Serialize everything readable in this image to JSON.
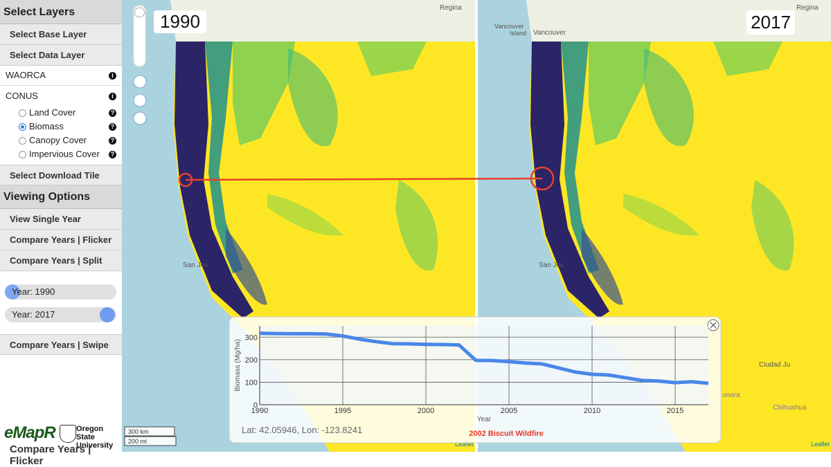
{
  "sidebar": {
    "layers_header": "Select Layers",
    "base_layer": "Select Base Layer",
    "data_layer": "Select Data Layer",
    "groups": [
      "WAORCA",
      "CONUS"
    ],
    "options": [
      {
        "label": "Land Cover",
        "checked": false
      },
      {
        "label": "Biomass",
        "checked": true
      },
      {
        "label": "Canopy Cover",
        "checked": false
      },
      {
        "label": "Impervious Cover",
        "checked": false
      }
    ],
    "download": "Select Download Tile",
    "viewing_header": "Viewing Options",
    "view_buttons": [
      "View Single Year",
      "Compare Years | Flicker",
      "Compare Years | Split"
    ],
    "sliders": [
      "Year: 1990",
      "Year: 2017"
    ],
    "swipe": "Compare Years | Swipe",
    "logo_emapr": "eMapR",
    "logo_osu": [
      "Oregon State",
      "University"
    ],
    "cut_off": "Compare Years | Flicker"
  },
  "map": {
    "left_year": "1990",
    "right_year": "2017",
    "places": [
      "Regina",
      "Vancouver",
      "Island",
      "Vancouver",
      "San Jos",
      "Regina",
      "San Jos",
      "Ciudad Ju",
      "Chihuahua",
      "onora"
    ],
    "scale": [
      "300 km",
      "200 mi"
    ],
    "attribution": "Leaflet"
  },
  "chart_data": {
    "type": "line",
    "x_label": "Year",
    "y_label": "Biomass (Mg/ha)",
    "x": [
      1990,
      1991,
      1992,
      1993,
      1994,
      1995,
      1996,
      1997,
      1998,
      1999,
      2000,
      2001,
      2002,
      2003,
      2004,
      2005,
      2006,
      2007,
      2008,
      2009,
      2010,
      2011,
      2012,
      2013,
      2014,
      2015,
      2016,
      2017
    ],
    "values": [
      317,
      316,
      315,
      315,
      314,
      305,
      291,
      280,
      271,
      270,
      268,
      267,
      265,
      197,
      196,
      191,
      185,
      181,
      163,
      145,
      135,
      132,
      120,
      108,
      105,
      98,
      102,
      95
    ],
    "color": "#4a86e8",
    "xlim": [
      1990,
      2017
    ],
    "xticks": [
      1990,
      1995,
      2000,
      2005,
      2010,
      2015
    ],
    "ylim": [
      0,
      350
    ],
    "yticks": [
      0,
      100,
      200,
      300
    ],
    "grid": true,
    "location": "Lat: 42.05946, Lon: -123.8241",
    "annotation": "2002 Biscuit Wildfire"
  }
}
